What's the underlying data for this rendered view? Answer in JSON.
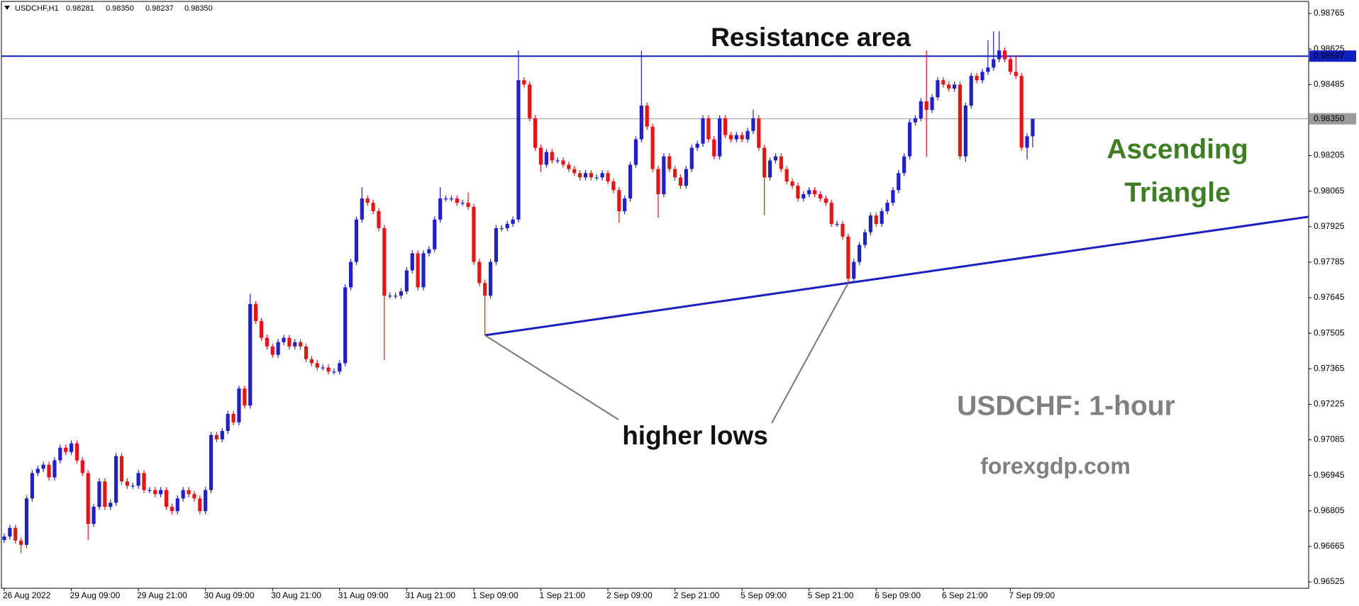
{
  "chart_data": {
    "type": "candlestick",
    "header": {
      "symbol": "USDCHF,H1",
      "values": [
        "0.98281",
        "0.98350",
        "0.98237",
        "0.98350"
      ]
    },
    "annotations": {
      "resistance": "Resistance area",
      "pattern": [
        "Ascending",
        "Triangle"
      ],
      "higher_lows": "higher lows",
      "timeframe": "USDCHF: 1-hour",
      "site": "forexgdp.com"
    },
    "up_color": "#1f1fd0",
    "down_color": "#ee1111",
    "ylim": [
      0.965,
      0.98807
    ],
    "yticks": [
      0.98765,
      0.98625,
      0.98485,
      0.98205,
      0.98065,
      0.97925,
      0.97785,
      0.97645,
      0.97505,
      0.97365,
      0.97225,
      0.97085,
      0.96945,
      0.96805,
      0.96665,
      0.96525
    ],
    "price_lines": [
      {
        "value": 0.98597,
        "label": "0.98597",
        "color": "#1020c0"
      },
      {
        "value": 0.9835,
        "label": "0.98350",
        "color": "#9a9a9a"
      }
    ],
    "support_line": {
      "x": [
        86,
        151
      ],
      "y": [
        0.97497,
        0.97703
      ],
      "color": "#1a1fc0"
    },
    "categories": [
      "26 Aug 2022",
      null,
      null,
      null,
      null,
      null,
      null,
      null,
      null,
      null,
      null,
      null,
      "29 Aug 09:00",
      null,
      null,
      null,
      null,
      null,
      null,
      null,
      null,
      null,
      null,
      null,
      "29 Aug 21:00",
      null,
      null,
      null,
      null,
      null,
      null,
      null,
      null,
      null,
      null,
      null,
      "30 Aug 09:00",
      null,
      null,
      null,
      null,
      null,
      null,
      null,
      null,
      null,
      null,
      null,
      "30 Aug 21:00",
      null,
      null,
      null,
      null,
      null,
      null,
      null,
      null,
      null,
      null,
      null,
      "31 Aug 09:00",
      null,
      null,
      null,
      null,
      null,
      null,
      null,
      null,
      null,
      null,
      null,
      "31 Aug 21:00",
      null,
      null,
      null,
      null,
      null,
      null,
      null,
      null,
      null,
      null,
      null,
      "1 Sep 09:00",
      null,
      null,
      null,
      null,
      null,
      null,
      null,
      null,
      null,
      null,
      null,
      "1 Sep 21:00",
      null,
      null,
      null,
      null,
      null,
      null,
      null,
      null,
      null,
      null,
      null,
      "2 Sep 09:00",
      null,
      null,
      null,
      null,
      null,
      null,
      null,
      null,
      null,
      null,
      null,
      "2 Sep 21:00",
      null,
      null,
      null,
      null,
      null,
      null,
      null,
      null,
      null,
      null,
      null,
      "5 Sep 09:00",
      null,
      null,
      null,
      null,
      null,
      null,
      null,
      null,
      null,
      null,
      null,
      "5 Sep 21:00",
      null,
      null,
      null,
      null,
      null,
      null,
      null,
      null,
      null,
      null,
      null,
      "6 Sep 09:00",
      null,
      null,
      null,
      null,
      null,
      null,
      null,
      null,
      null,
      null,
      null,
      "6 Sep 21:00",
      null,
      null,
      null,
      null,
      null,
      null,
      null,
      null,
      null,
      null,
      null,
      "7 Sep 09:00",
      null,
      null,
      null,
      null
    ],
    "open": [
      0.9669,
      0.96704,
      0.96738,
      0.96688,
      0.96671,
      0.96854,
      0.96954,
      0.96971,
      0.96987,
      0.96937,
      0.97004,
      0.97054,
      0.97037,
      0.97071,
      0.97004,
      0.96954,
      0.96754,
      0.96821,
      0.96921,
      0.96821,
      0.96837,
      0.97021,
      0.96921,
      0.96904,
      0.96904,
      0.96954,
      0.96887,
      0.96887,
      0.96871,
      0.96887,
      0.96821,
      0.96804,
      0.96854,
      0.96887,
      0.96871,
      0.96854,
      0.96804,
      0.96887,
      0.97104,
      0.97087,
      0.9712,
      0.97187,
      0.97154,
      0.97287,
      0.9722,
      0.9762,
      0.97553,
      0.97487,
      0.97453,
      0.9742,
      0.9747,
      0.97487,
      0.97453,
      0.9747,
      0.97453,
      0.97403,
      0.97387,
      0.9737,
      0.9737,
      0.97354,
      0.97354,
      0.97387,
      0.97686,
      0.97786,
      0.97953,
      0.98036,
      0.98019,
      0.97986,
      0.97919,
      0.97653,
      0.97653,
      0.97653,
      0.9767,
      0.97753,
      0.9782,
      0.97686,
      0.9782,
      0.97836,
      0.97953,
      0.98036,
      0.98036,
      0.98036,
      0.98019,
      0.98019,
      0.98003,
      0.97786,
      0.97703,
      0.97653,
      0.97786,
      0.97919,
      0.97919,
      0.97936,
      0.97953,
      0.98502,
      0.98485,
      0.98352,
      0.98236,
      0.98169,
      0.98219,
      0.98186,
      0.98186,
      0.98169,
      0.98152,
      0.98136,
      0.98119,
      0.98136,
      0.98119,
      0.98119,
      0.98136,
      0.98103,
      0.98069,
      0.97986,
      0.98036,
      0.98169,
      0.98269,
      0.98402,
      0.98319,
      0.98152,
      0.98053,
      0.98202,
      0.98152,
      0.98119,
      0.98086,
      0.98152,
      0.98236,
      0.98252,
      0.98352,
      0.98269,
      0.98202,
      0.98352,
      0.98286,
      0.98269,
      0.98286,
      0.98269,
      0.98302,
      0.98352,
      0.98236,
      0.98119,
      0.98186,
      0.98202,
      0.98152,
      0.98103,
      0.98086,
      0.98036,
      0.98053,
      0.98069,
      0.98053,
      0.98036,
      0.98019,
      0.97936,
      0.97936,
      0.97886,
      0.9772,
      0.97786,
      0.97853,
      0.97903,
      0.97969,
      0.97936,
      0.97986,
      0.98019,
      0.98069,
      0.98136,
      0.98202,
      0.98336,
      0.98352,
      0.98419,
      0.98385,
      0.98435,
      0.98502,
      0.98485,
      0.98469,
      0.98485,
      0.98202,
      0.98402,
      0.98519,
      0.98502,
      0.98535,
      0.98552,
      0.98585,
      0.98619,
      0.98585,
      0.98535,
      0.98519,
      0.98236,
      0.98281
    ],
    "high": [
      0.96716,
      0.9675,
      0.9675,
      0.967,
      0.96866,
      0.96966,
      0.96983,
      0.96999,
      0.96999,
      0.97016,
      0.97066,
      0.97066,
      0.97083,
      0.97083,
      0.97016,
      0.96966,
      0.96833,
      0.96933,
      0.96933,
      0.96849,
      0.97033,
      0.97033,
      0.96933,
      0.96916,
      0.96966,
      0.96966,
      0.96899,
      0.96899,
      0.96899,
      0.96899,
      0.96833,
      0.96866,
      0.96899,
      0.96899,
      0.96883,
      0.96866,
      0.96899,
      0.97116,
      0.97116,
      0.97132,
      0.97199,
      0.97199,
      0.97299,
      0.97299,
      0.9766,
      0.97632,
      0.97565,
      0.97499,
      0.97465,
      0.97482,
      0.97499,
      0.97499,
      0.97482,
      0.97482,
      0.97465,
      0.97415,
      0.97399,
      0.97382,
      0.97382,
      0.97366,
      0.97399,
      0.97698,
      0.97798,
      0.97965,
      0.9808,
      0.98048,
      0.98031,
      0.97998,
      0.97931,
      0.97665,
      0.97665,
      0.97682,
      0.97765,
      0.97832,
      0.97832,
      0.97832,
      0.97848,
      0.97965,
      0.9808,
      0.98048,
      0.98048,
      0.98048,
      0.98031,
      0.9806,
      0.98015,
      0.97798,
      0.97715,
      0.97798,
      0.97931,
      0.97931,
      0.97948,
      0.97965,
      0.98619,
      0.98514,
      0.98497,
      0.98364,
      0.98248,
      0.98231,
      0.98231,
      0.98198,
      0.98198,
      0.98181,
      0.98164,
      0.98148,
      0.98148,
      0.98148,
      0.98131,
      0.98148,
      0.98148,
      0.98115,
      0.98081,
      0.98048,
      0.98181,
      0.98281,
      0.98619,
      0.98414,
      0.98331,
      0.98164,
      0.98214,
      0.98214,
      0.98164,
      0.98131,
      0.98164,
      0.98248,
      0.98264,
      0.98364,
      0.98364,
      0.98281,
      0.98364,
      0.98364,
      0.98298,
      0.98298,
      0.98298,
      0.98314,
      0.98386,
      0.98364,
      0.98248,
      0.98198,
      0.98214,
      0.98214,
      0.98164,
      0.98115,
      0.98098,
      0.98065,
      0.98081,
      0.98081,
      0.98065,
      0.98048,
      0.98031,
      0.97948,
      0.97948,
      0.97898,
      0.97798,
      0.97865,
      0.97915,
      0.97981,
      0.97981,
      0.97998,
      0.98031,
      0.98081,
      0.98148,
      0.98214,
      0.98348,
      0.98364,
      0.98431,
      0.98619,
      0.98447,
      0.98514,
      0.98514,
      0.98497,
      0.98497,
      0.98497,
      0.98414,
      0.98531,
      0.98531,
      0.98547,
      0.9866,
      0.98695,
      0.98695,
      0.98631,
      0.98597,
      0.986,
      0.98531,
      0.98293,
      0.9835
    ],
    "low": [
      0.96678,
      0.96692,
      0.96676,
      0.96638,
      0.96659,
      0.96842,
      0.96942,
      0.96959,
      0.96925,
      0.96925,
      0.96992,
      0.97025,
      0.97025,
      0.96992,
      0.96942,
      0.9669,
      0.96742,
      0.96809,
      0.96809,
      0.96809,
      0.96825,
      0.96909,
      0.96892,
      0.96892,
      0.96892,
      0.96875,
      0.96875,
      0.96859,
      0.96859,
      0.96809,
      0.96792,
      0.96792,
      0.96842,
      0.96859,
      0.96842,
      0.96792,
      0.96792,
      0.96875,
      0.97075,
      0.97075,
      0.97108,
      0.97142,
      0.97142,
      0.97208,
      0.97208,
      0.97541,
      0.97475,
      0.97441,
      0.97408,
      0.97408,
      0.97458,
      0.97441,
      0.97441,
      0.97441,
      0.97391,
      0.97375,
      0.97358,
      0.97358,
      0.97342,
      0.97342,
      0.97342,
      0.97375,
      0.97674,
      0.97774,
      0.97941,
      0.98007,
      0.97974,
      0.97907,
      0.974,
      0.97641,
      0.97641,
      0.97641,
      0.97658,
      0.97741,
      0.97674,
      0.97674,
      0.97808,
      0.97824,
      0.97941,
      0.98024,
      0.98024,
      0.98007,
      0.98007,
      0.97991,
      0.97774,
      0.97691,
      0.97497,
      0.97641,
      0.97774,
      0.97907,
      0.97907,
      0.97924,
      0.97941,
      0.98473,
      0.9834,
      0.98224,
      0.9814,
      0.98157,
      0.98174,
      0.98174,
      0.98157,
      0.9814,
      0.98124,
      0.98107,
      0.98107,
      0.98107,
      0.98107,
      0.98107,
      0.98091,
      0.98057,
      0.9794,
      0.97974,
      0.98024,
      0.98157,
      0.98257,
      0.98307,
      0.9814,
      0.9796,
      0.98041,
      0.9814,
      0.98107,
      0.98074,
      0.98074,
      0.9814,
      0.98224,
      0.9824,
      0.98257,
      0.9819,
      0.9819,
      0.98274,
      0.98257,
      0.98257,
      0.98257,
      0.98257,
      0.9829,
      0.98224,
      0.9797,
      0.98107,
      0.98174,
      0.9814,
      0.98091,
      0.98074,
      0.98024,
      0.98024,
      0.98041,
      0.98041,
      0.98024,
      0.98007,
      0.97924,
      0.97924,
      0.97874,
      0.97703,
      0.97708,
      0.97774,
      0.97841,
      0.97891,
      0.97924,
      0.97924,
      0.97974,
      0.98007,
      0.98057,
      0.98124,
      0.9819,
      0.98324,
      0.9834,
      0.982,
      0.98373,
      0.98423,
      0.98473,
      0.98457,
      0.98457,
      0.9819,
      0.9818,
      0.9839,
      0.9849,
      0.9849,
      0.98523,
      0.9854,
      0.98573,
      0.98573,
      0.98523,
      0.98507,
      0.98224,
      0.9819,
      0.98237
    ],
    "close": [
      0.96704,
      0.96738,
      0.96688,
      0.96671,
      0.96854,
      0.96954,
      0.96971,
      0.96987,
      0.96937,
      0.97004,
      0.97054,
      0.97037,
      0.97071,
      0.97004,
      0.96954,
      0.96754,
      0.96821,
      0.96921,
      0.96821,
      0.96837,
      0.97021,
      0.96921,
      0.96904,
      0.96904,
      0.96954,
      0.96887,
      0.96887,
      0.96871,
      0.96887,
      0.96821,
      0.96804,
      0.96854,
      0.96887,
      0.96871,
      0.96854,
      0.96804,
      0.96887,
      0.97104,
      0.97087,
      0.9712,
      0.97187,
      0.97154,
      0.97287,
      0.9722,
      0.9762,
      0.97553,
      0.97487,
      0.97453,
      0.9742,
      0.9747,
      0.97487,
      0.97453,
      0.9747,
      0.97453,
      0.97403,
      0.97387,
      0.9737,
      0.9737,
      0.97354,
      0.97354,
      0.97387,
      0.97686,
      0.97786,
      0.97953,
      0.98036,
      0.98019,
      0.97986,
      0.97919,
      0.97653,
      0.97653,
      0.97653,
      0.9767,
      0.97753,
      0.9782,
      0.97686,
      0.9782,
      0.97836,
      0.97953,
      0.98036,
      0.98036,
      0.98036,
      0.98019,
      0.98019,
      0.98003,
      0.97786,
      0.97703,
      0.97653,
      0.97786,
      0.97919,
      0.97919,
      0.97936,
      0.97953,
      0.98502,
      0.98485,
      0.98352,
      0.98236,
      0.98169,
      0.98219,
      0.98186,
      0.98186,
      0.98169,
      0.98152,
      0.98136,
      0.98119,
      0.98136,
      0.98119,
      0.98119,
      0.98136,
      0.98103,
      0.98069,
      0.97986,
      0.98036,
      0.98169,
      0.98269,
      0.98402,
      0.98319,
      0.98152,
      0.98053,
      0.98202,
      0.98152,
      0.98119,
      0.98086,
      0.98152,
      0.98236,
      0.98252,
      0.98352,
      0.98269,
      0.98202,
      0.98352,
      0.98286,
      0.98269,
      0.98286,
      0.98269,
      0.98302,
      0.98352,
      0.98236,
      0.98119,
      0.98186,
      0.98202,
      0.98152,
      0.98103,
      0.98086,
      0.98036,
      0.98053,
      0.98069,
      0.98053,
      0.98036,
      0.98019,
      0.97936,
      0.97936,
      0.97886,
      0.9772,
      0.97786,
      0.97853,
      0.97903,
      0.97969,
      0.97936,
      0.97986,
      0.98019,
      0.98069,
      0.98136,
      0.98202,
      0.98336,
      0.98352,
      0.98419,
      0.98385,
      0.98435,
      0.98502,
      0.98485,
      0.98469,
      0.98485,
      0.98202,
      0.98402,
      0.98519,
      0.98502,
      0.98535,
      0.98552,
      0.98585,
      0.98619,
      0.98585,
      0.98535,
      0.98519,
      0.98236,
      0.98281,
      0.9835
    ]
  }
}
